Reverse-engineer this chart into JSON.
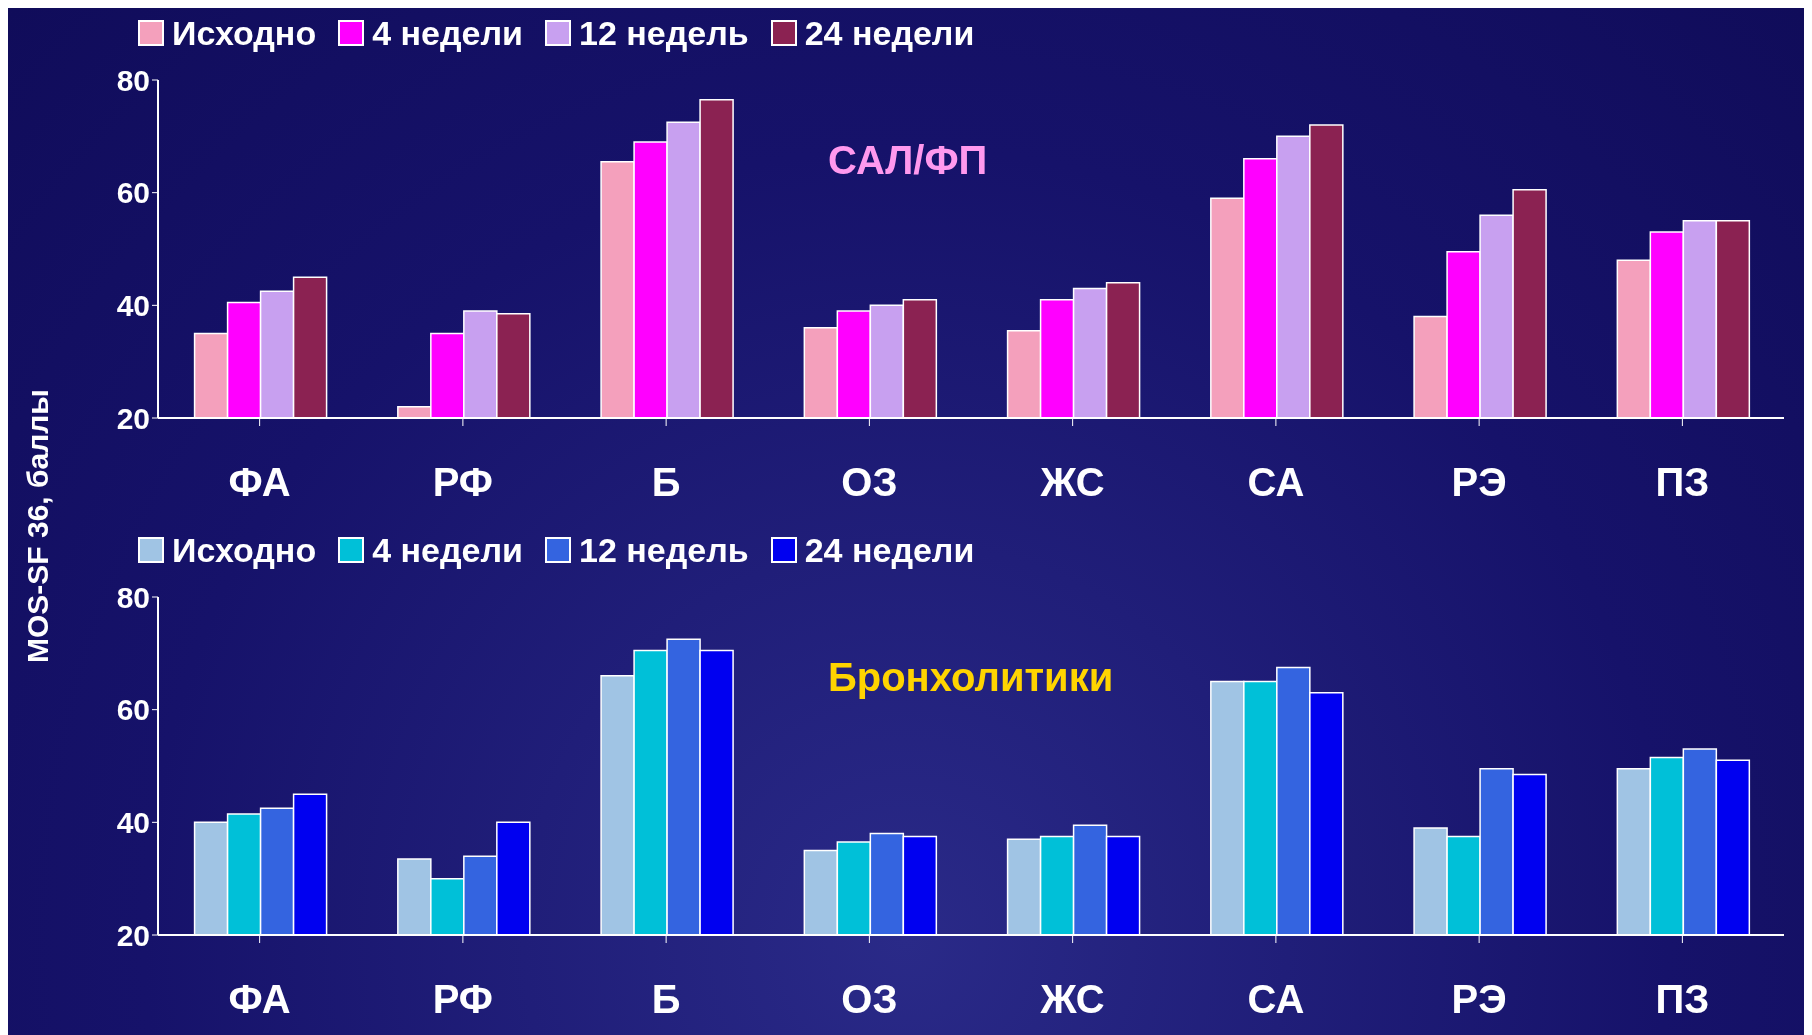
{
  "chart_data": [
    {
      "type": "bar",
      "ylabel": "MOS-SF 36, баллы",
      "annotations": [
        "САЛ/ФП"
      ],
      "categories": [
        "ФА",
        "РФ",
        "Б",
        "ОЗ",
        "ЖС",
        "СА",
        "РЭ",
        "ПЗ"
      ],
      "ylim": [
        20,
        80
      ],
      "yticks": [
        20,
        40,
        60,
        80
      ],
      "legend": "top",
      "grid": false,
      "series": [
        {
          "name": "Исходно",
          "color": "#f4a0bc",
          "values": [
            35,
            22,
            65.5,
            36,
            35.5,
            59,
            38,
            48
          ]
        },
        {
          "name": "4 недели",
          "color": "#ff00ff",
          "values": [
            40.5,
            35,
            69,
            39,
            41,
            66,
            49.5,
            53
          ]
        },
        {
          "name": "12 недель",
          "color": "#c8a0f0",
          "values": [
            42.5,
            39,
            72.5,
            40,
            43,
            70,
            56,
            55
          ]
        },
        {
          "name": "24 недели",
          "color": "#8b2252",
          "values": [
            45,
            38.5,
            76.5,
            41,
            44,
            72,
            60.5,
            55
          ]
        }
      ]
    },
    {
      "type": "bar",
      "annotations": [
        "Бронхолитики"
      ],
      "categories": [
        "ФА",
        "РФ",
        "Б",
        "ОЗ",
        "ЖС",
        "СА",
        "РЭ",
        "ПЗ"
      ],
      "ylim": [
        20,
        80
      ],
      "yticks": [
        20,
        40,
        60,
        80
      ],
      "legend": "top",
      "grid": false,
      "series": [
        {
          "name": "Исходно",
          "color": "#a0c4e4",
          "values": [
            40,
            33.5,
            66,
            35,
            37,
            65,
            39,
            49.5
          ]
        },
        {
          "name": "4 недели",
          "color": "#00c0d8",
          "values": [
            41.5,
            30,
            70.5,
            36.5,
            37.5,
            65,
            37.5,
            51.5
          ]
        },
        {
          "name": "12 недель",
          "color": "#3464e0",
          "values": [
            42.5,
            34,
            72.5,
            38,
            39.5,
            67.5,
            49.5,
            53
          ]
        },
        {
          "name": "24 недели",
          "color": "#0000f0",
          "values": [
            45,
            40,
            70.5,
            37.5,
            37.5,
            63,
            48.5,
            51
          ]
        }
      ]
    }
  ]
}
